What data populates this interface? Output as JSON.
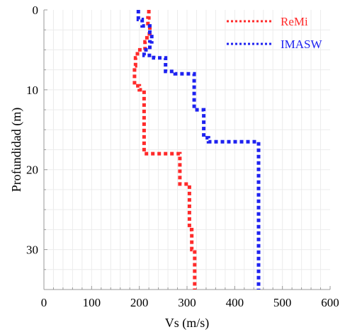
{
  "chart_data": {
    "type": "line",
    "xlabel": "Vs (m/s)",
    "ylabel": "Profundidad (m)",
    "xlim": [
      0,
      600
    ],
    "ylim": [
      0,
      35
    ],
    "y_inverted": true,
    "x_axis_position": "bottom",
    "grid": true,
    "legend_position": "top-right",
    "x_ticks": [
      0,
      100,
      200,
      300,
      400,
      500,
      600
    ],
    "y_ticks": [
      0,
      10,
      20,
      30
    ],
    "series": [
      {
        "name": "ReMi",
        "color": "#ff2a2a",
        "style": "dotted",
        "points": [
          [
            220,
            0
          ],
          [
            220,
            1
          ],
          [
            218,
            1
          ],
          [
            218,
            2
          ],
          [
            222,
            2
          ],
          [
            222,
            3
          ],
          [
            216,
            3
          ],
          [
            216,
            4
          ],
          [
            212,
            4
          ],
          [
            212,
            5
          ],
          [
            196,
            5
          ],
          [
            196,
            6
          ],
          [
            192,
            6
          ],
          [
            192,
            7
          ],
          [
            190,
            7
          ],
          [
            190,
            9.5
          ],
          [
            200,
            9.5
          ],
          [
            200,
            10
          ],
          [
            210,
            10
          ],
          [
            210,
            18
          ],
          [
            285,
            18
          ],
          [
            285,
            21.8
          ],
          [
            305,
            21.8
          ],
          [
            305,
            27.5
          ],
          [
            310,
            27.5
          ],
          [
            310,
            30
          ],
          [
            316,
            30
          ],
          [
            316,
            35
          ]
        ]
      },
      {
        "name": "IMASW",
        "color": "#1e22f0",
        "style": "dotted",
        "points": [
          [
            198,
            0
          ],
          [
            198,
            1.2
          ],
          [
            206,
            1.2
          ],
          [
            206,
            2
          ],
          [
            222,
            2
          ],
          [
            222,
            2.8
          ],
          [
            226,
            2.8
          ],
          [
            226,
            4
          ],
          [
            222,
            4
          ],
          [
            222,
            5
          ],
          [
            210,
            5
          ],
          [
            210,
            5.7
          ],
          [
            230,
            5.7
          ],
          [
            230,
            6
          ],
          [
            255,
            6
          ],
          [
            255,
            7.7
          ],
          [
            275,
            7.7
          ],
          [
            275,
            8
          ],
          [
            315,
            8
          ],
          [
            315,
            12.5
          ],
          [
            335,
            12.5
          ],
          [
            335,
            16
          ],
          [
            345,
            16
          ],
          [
            345,
            16.5
          ],
          [
            450,
            16.5
          ],
          [
            450,
            35
          ]
        ]
      }
    ]
  }
}
